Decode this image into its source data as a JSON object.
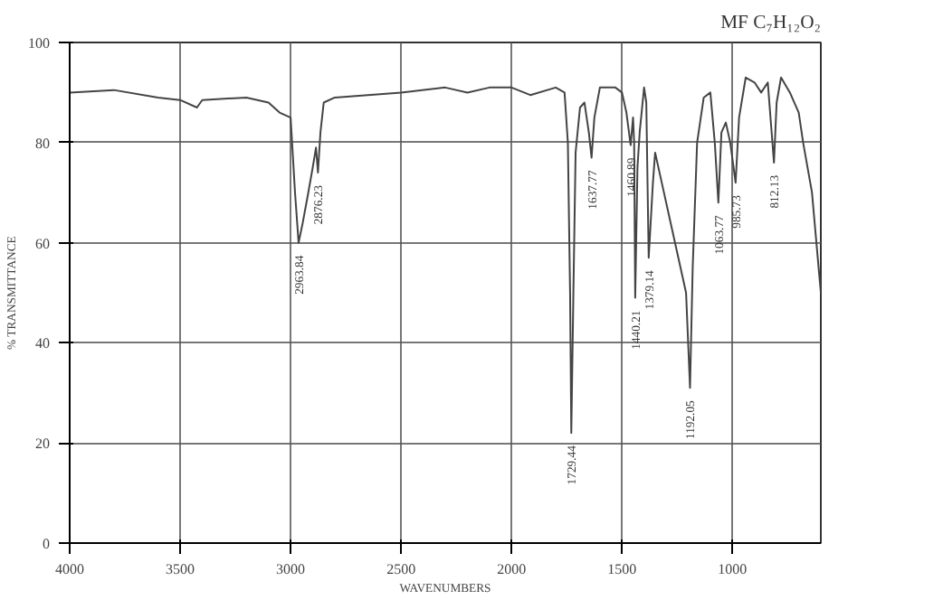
{
  "chart_data": {
    "type": "line",
    "xlabel": "WAVENUMBERS",
    "ylabel": "% TRANSMITTANCE",
    "annotations": [
      "MF C₇H₁₂O₂",
      {
        "text": "2963.84",
        "x": 2963.84,
        "y": 60
      },
      {
        "text": "2876.23",
        "x": 2876.23,
        "y": 74
      },
      {
        "text": "1729.44",
        "x": 1729.44,
        "y": 22
      },
      {
        "text": "1637.77",
        "x": 1637.77,
        "y": 77
      },
      {
        "text": "1460.89",
        "x": 1460.89,
        "y": 79.5
      },
      {
        "text": "1440.21",
        "x": 1440.21,
        "y": 49
      },
      {
        "text": "1379.14",
        "x": 1379.14,
        "y": 57
      },
      {
        "text": "1192.05",
        "x": 1192.05,
        "y": 31
      },
      {
        "text": "1063.77",
        "x": 1063.77,
        "y": 68
      },
      {
        "text": "985.73",
        "x": 985.73,
        "y": 72
      },
      {
        "text": "812.13",
        "x": 812.13,
        "y": 76
      }
    ],
    "series": [
      {
        "color": "#444444",
        "x": [
          4000,
          3800,
          3600,
          3500,
          3424,
          3400,
          3200,
          3100,
          3050,
          3000,
          2980,
          2963.84,
          2945,
          2920,
          2900,
          2885,
          2876.23,
          2865,
          2850,
          2800,
          2500,
          2300,
          2200,
          2100,
          2000,
          1915,
          1800,
          1760,
          1745,
          1735,
          1729.44,
          1720,
          1710,
          1690,
          1670,
          1650,
          1637.77,
          1625,
          1600,
          1530,
          1500,
          1480,
          1460.89,
          1450,
          1445,
          1440.21,
          1430,
          1420,
          1400,
          1390,
          1379.14,
          1360,
          1350,
          1320,
          1210,
          1192.05,
          1180,
          1160,
          1130,
          1100,
          1080,
          1063.77,
          1050,
          1030,
          1010,
          985.73,
          970,
          940,
          900,
          870,
          840,
          812.13,
          800,
          780,
          740,
          700,
          680,
          640,
          610,
          600
        ],
        "values": [
          90,
          90.5,
          89,
          88.5,
          87,
          88.5,
          89,
          88,
          86,
          85,
          70,
          60,
          64,
          70,
          75,
          79,
          74,
          82,
          88,
          89,
          90,
          91,
          90,
          91,
          91,
          89.5,
          91,
          90,
          80,
          50,
          22,
          50,
          78,
          87,
          88,
          82,
          77,
          85,
          91,
          91,
          90,
          86,
          79.5,
          85,
          80,
          49,
          75,
          82,
          91,
          88,
          57,
          72,
          78,
          72,
          50,
          31,
          55,
          80,
          89,
          90,
          80,
          68,
          82,
          84,
          80,
          72,
          85,
          93,
          92,
          90,
          92,
          76,
          88,
          93,
          90,
          86,
          80,
          70,
          55,
          50
        ]
      }
    ],
    "xlim": [
      4000,
      600
    ],
    "ylim": [
      0,
      100
    ],
    "xticks": [
      4000,
      3500,
      3000,
      2500,
      2000,
      1500,
      1000
    ],
    "yticks": [
      0,
      20,
      40,
      60,
      80,
      100
    ],
    "grid": true,
    "marker": "none",
    "line_style": "solid"
  }
}
